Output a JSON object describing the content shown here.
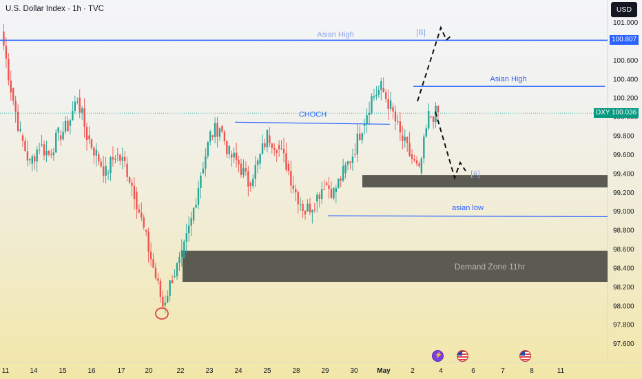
{
  "header": {
    "title": "U.S. Dollar Index · 1h · TVC"
  },
  "toolbar": {
    "currency": "USD"
  },
  "price_scale": {
    "current_price": "100.036",
    "symbol_badge": "DXY",
    "level_badge": "100.807"
  },
  "events": [
    {
      "icon": "bolt-icon"
    },
    {
      "icon": "us-flag-icon"
    },
    {
      "icon": "us-flag-icon"
    }
  ],
  "colors": {
    "up": "#26a69a",
    "down": "#ef5350",
    "drawing": "#2962ff",
    "zone": "#4e4e46",
    "badge_price": "#089981",
    "badge_level": "#2962ff"
  },
  "chart_data": {
    "type": "candlestick",
    "title": "U.S. Dollar Index · 1h · TVC",
    "y_ticks": [
      "101.000",
      "100.800",
      "100.600",
      "100.400",
      "100.200",
      "100.000",
      "99.800",
      "99.600",
      "99.400",
      "99.200",
      "99.000",
      "98.800",
      "98.600",
      "98.400",
      "98.200",
      "98.000",
      "97.800",
      "97.600"
    ],
    "ylim": [
      97.4,
      101.4
    ],
    "x_ticks": [
      "11",
      "14",
      "15",
      "16",
      "17",
      "20",
      "22",
      "23",
      "24",
      "25",
      "28",
      "29",
      "30",
      "May",
      "2",
      "4",
      "6",
      "7",
      "8",
      "11"
    ],
    "grid": false,
    "price_path": [
      [
        "11",
        100.9
      ],
      [
        "11",
        100.3
      ],
      [
        "14",
        99.8
      ],
      [
        "14",
        99.5
      ],
      [
        "14",
        99.7
      ],
      [
        "15",
        99.6
      ],
      [
        "15",
        99.8
      ],
      [
        "15",
        99.9
      ],
      [
        "16",
        100.2
      ],
      [
        "16",
        99.8
      ],
      [
        "16",
        99.6
      ],
      [
        "17",
        99.4
      ],
      [
        "17",
        99.6
      ],
      [
        "17",
        99.5
      ],
      [
        "20",
        99.2
      ],
      [
        "20",
        98.8
      ],
      [
        "20",
        98.4
      ],
      [
        "22",
        98.0
      ],
      [
        "22",
        98.3
      ],
      [
        "22",
        98.5
      ],
      [
        "23",
        98.9
      ],
      [
        "23",
        99.4
      ],
      [
        "23",
        99.8
      ],
      [
        "24",
        99.9
      ],
      [
        "24",
        99.6
      ],
      [
        "24",
        99.5
      ],
      [
        "25",
        99.3
      ],
      [
        "25",
        99.5
      ],
      [
        "25",
        99.8
      ],
      [
        "28",
        99.7
      ],
      [
        "28",
        99.5
      ],
      [
        "28",
        99.2
      ],
      [
        "29",
        99.0
      ],
      [
        "29",
        99.1
      ],
      [
        "29",
        99.3
      ],
      [
        "30",
        99.2
      ],
      [
        "30",
        99.4
      ],
      [
        "30",
        99.6
      ],
      [
        "May",
        99.9
      ],
      [
        "May",
        100.2
      ],
      [
        "May",
        100.3
      ],
      [
        "2",
        100.1
      ],
      [
        "2",
        99.8
      ],
      [
        "2",
        99.6
      ],
      [
        "2",
        99.4
      ],
      [
        "4",
        100.0
      ],
      [
        "4",
        100.036
      ]
    ],
    "annotations": [
      {
        "text": "Asian High",
        "price": 100.807,
        "faded": true
      },
      {
        "text": "[B]",
        "faded": true
      },
      {
        "text": "Asian High",
        "price": 100.32
      },
      {
        "text": "CHOCH",
        "price": 99.94
      },
      {
        "text": "asian low",
        "price": 98.95
      },
      {
        "text": "[A]",
        "faded": true
      },
      {
        "text": "Demand Zone 11hr",
        "range": [
          98.25,
          98.58
        ]
      }
    ],
    "zones": [
      {
        "range": [
          99.25,
          99.38
        ]
      },
      {
        "range": [
          98.25,
          98.58
        ],
        "label": "Demand Zone 11hr"
      }
    ],
    "projection": {
      "style": "dashed",
      "points": [
        [
          "2",
          100.2
        ],
        [
          "4",
          100.95
        ],
        [
          "4",
          99.4
        ]
      ]
    }
  }
}
